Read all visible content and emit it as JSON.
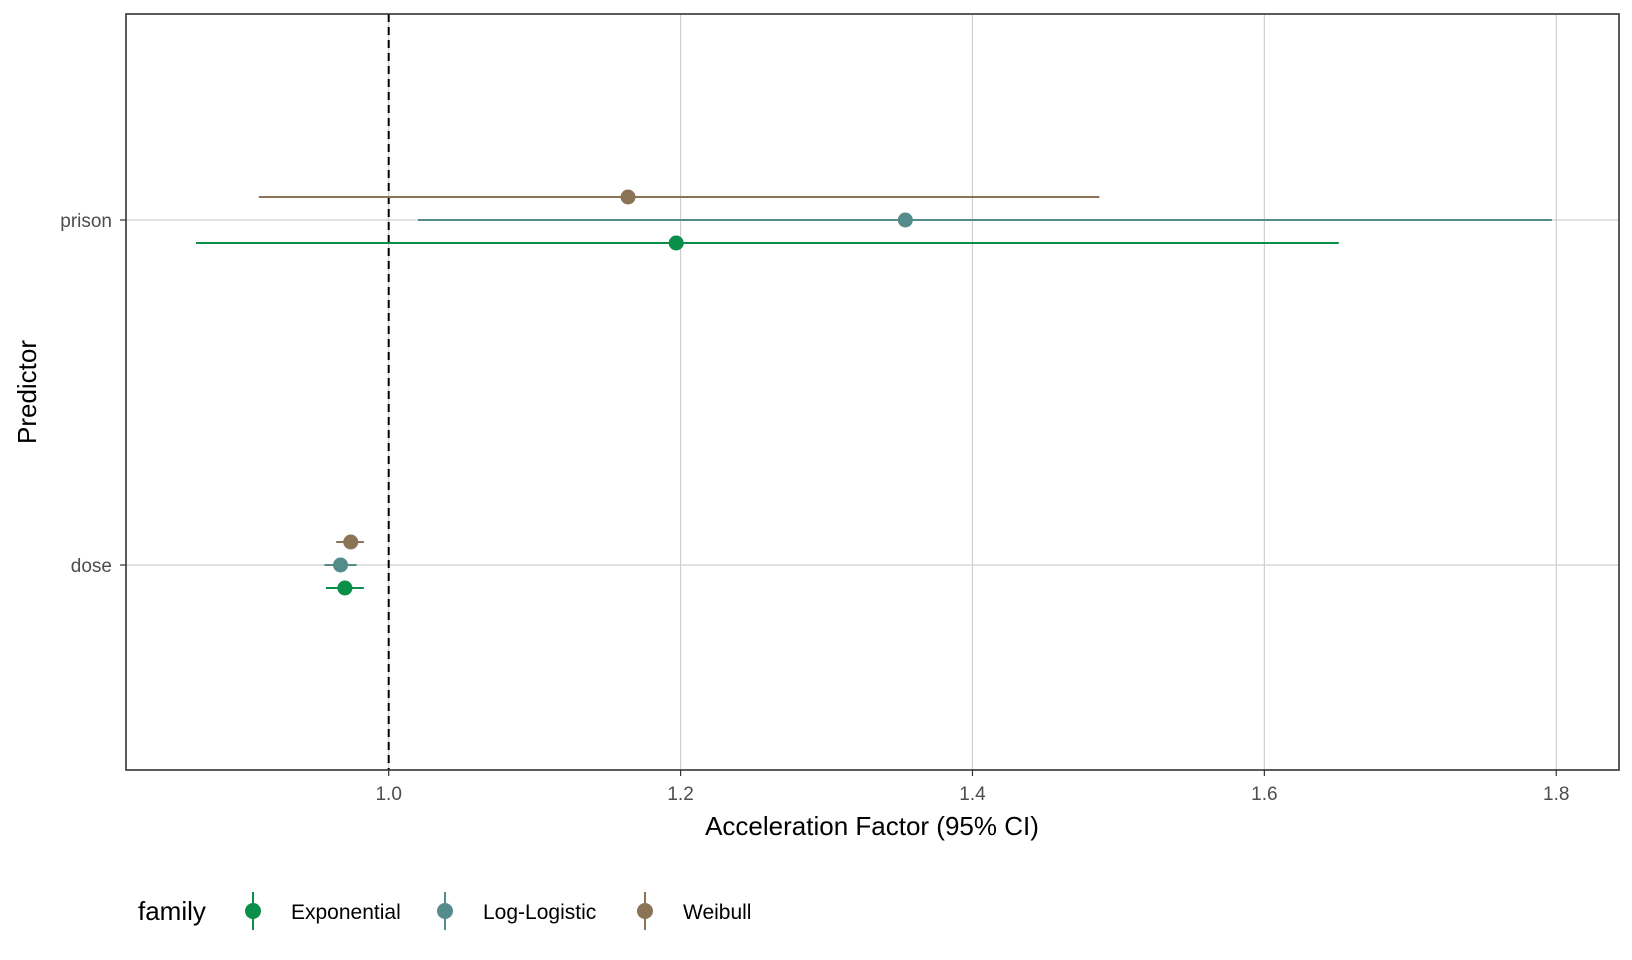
{
  "chart_data": {
    "type": "scatter",
    "subtype": "forest-plot-with-error-bars",
    "title": "",
    "xlabel": "Acceleration Factor (95% CI)",
    "ylabel": "Predictor",
    "xlim": [
      0.82,
      1.843
    ],
    "xticks": [
      1.0,
      1.2,
      1.4,
      1.6,
      1.8
    ],
    "xtick_labels": [
      "1.0",
      "1.2",
      "1.4",
      "1.6",
      "1.8"
    ],
    "categories": [
      "prison",
      "dose"
    ],
    "reference_line": {
      "x": 1.0,
      "style": "dashed",
      "color": "#000000"
    },
    "grid": true,
    "legend": {
      "title": "family",
      "position": "bottom-left",
      "entries": [
        "Exponential",
        "Log-Logistic",
        "Weibull"
      ]
    },
    "series": [
      {
        "name": "Exponential",
        "color": "#0a8f4a",
        "points": [
          {
            "category": "prison",
            "estimate": 1.197,
            "lower": 0.868,
            "upper": 1.651
          },
          {
            "category": "dose",
            "estimate": 0.97,
            "lower": 0.957,
            "upper": 0.983
          }
        ]
      },
      {
        "name": "Log-Logistic",
        "color": "#548b8b",
        "points": [
          {
            "category": "prison",
            "estimate": 1.354,
            "lower": 1.02,
            "upper": 1.797
          },
          {
            "category": "dose",
            "estimate": 0.967,
            "lower": 0.956,
            "upper": 0.978
          }
        ]
      },
      {
        "name": "Weibull",
        "color": "#8b7355",
        "points": [
          {
            "category": "prison",
            "estimate": 1.164,
            "lower": 0.911,
            "upper": 1.487
          },
          {
            "category": "dose",
            "estimate": 0.974,
            "lower": 0.964,
            "upper": 0.983
          }
        ]
      }
    ]
  }
}
